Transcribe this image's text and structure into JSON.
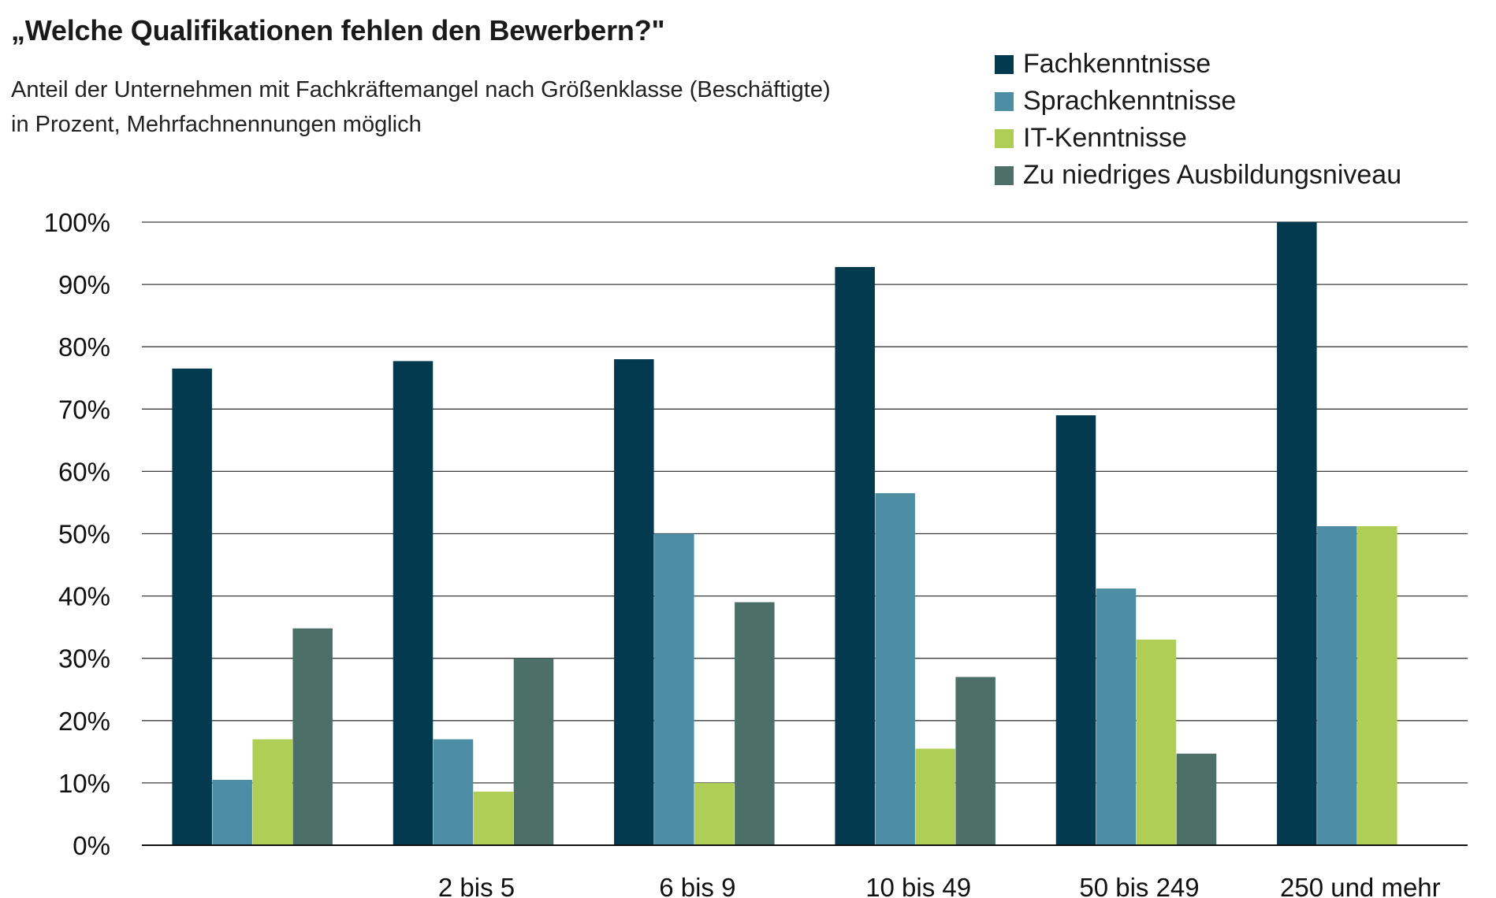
{
  "title": "„Welche Qualifikationen fehlen den Bewerbern?\"",
  "subtitle_line1": "Anteil der Unternehmen mit Fachkräftemangel nach Größenklasse (Beschäftigte)",
  "subtitle_line2": "in Prozent, Mehrfachnennungen möglich",
  "colors": [
    "#033a4f",
    "#4e8ea4",
    "#afce55",
    "#4c6f68"
  ],
  "chart_data": {
    "type": "bar",
    "title": "„Welche Qualifikationen fehlen den Bewerbern?\"",
    "xlabel": "",
    "ylabel": "",
    "ylim": [
      0,
      100
    ],
    "y_ticks": [
      "0%",
      "10%",
      "20%",
      "30%",
      "40%",
      "50%",
      "60%",
      "70%",
      "80%",
      "90%",
      "100%"
    ],
    "grid": true,
    "legend_position": "top-right",
    "categories": [
      "",
      "2 bis 5",
      "6 bis 9",
      "10 bis 49",
      "50 bis 249",
      "250 und mehr"
    ],
    "series": [
      {
        "name": "Fachkenntnisse",
        "values": [
          76.5,
          77.7,
          78,
          92.8,
          69,
          100
        ]
      },
      {
        "name": "Sprachkenntnisse",
        "values": [
          10.5,
          17,
          50,
          56.5,
          41.2,
          51.2
        ]
      },
      {
        "name": "IT-Kenntnisse",
        "values": [
          17,
          8.6,
          10,
          15.5,
          33,
          51.2
        ]
      },
      {
        "name": "Zu niedriges Ausbildungsniveau",
        "values": [
          34.8,
          30,
          39,
          27,
          14.7,
          null
        ]
      }
    ]
  }
}
